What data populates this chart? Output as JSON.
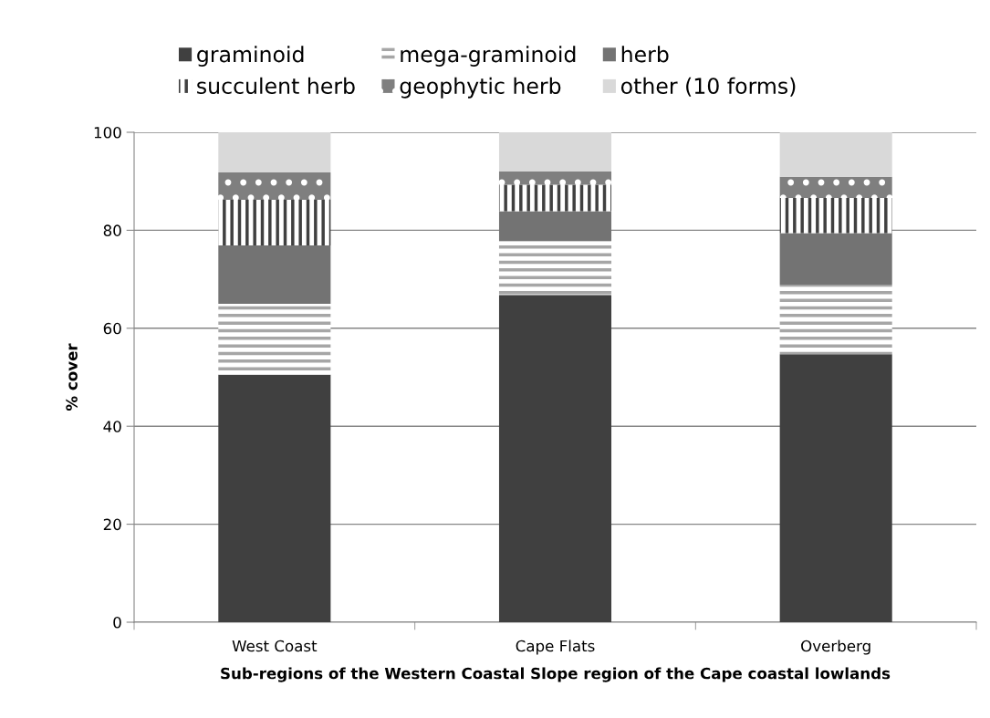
{
  "chart_data": {
    "type": "bar",
    "stacked": true,
    "xlabel": "Sub-regions of the Western Coastal Slope region of the Cape coastal lowlands",
    "ylabel": "% cover",
    "categories": [
      "West Coast",
      "Cape Flats",
      "Overberg"
    ],
    "ylim": [
      0,
      100
    ],
    "yticks": [
      0,
      20,
      40,
      60,
      80,
      100
    ],
    "grid": "y",
    "legend": "top",
    "series": [
      {
        "name": "graminoid",
        "color": "#404040",
        "values": [
          50.5,
          66.8,
          54.7
        ]
      },
      {
        "name": "mega-graminoid",
        "color": "#a6a6a6",
        "values": [
          14.5,
          11.0,
          14.1
        ]
      },
      {
        "name": "herb",
        "color": "#737373",
        "values": [
          11.9,
          6.1,
          10.6
        ]
      },
      {
        "name": "succulent herb",
        "color": "#404040",
        "values": [
          9.3,
          5.4,
          7.2
        ]
      },
      {
        "name": "geophytic herb",
        "color": "#7f7f7f",
        "values": [
          5.6,
          2.7,
          4.3
        ]
      },
      {
        "name": "other (10 forms)",
        "color": "#d9d9d9",
        "values": [
          8.2,
          8.0,
          9.1
        ]
      }
    ]
  }
}
